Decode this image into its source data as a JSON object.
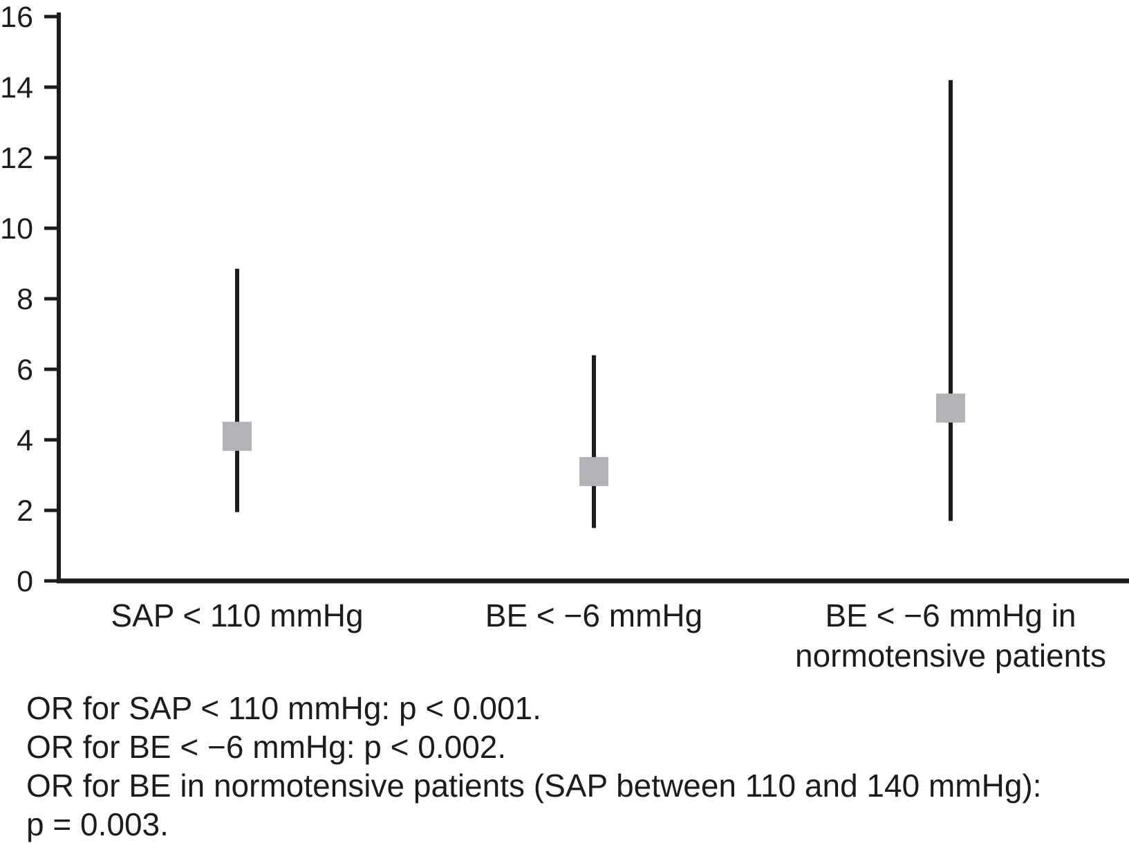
{
  "figure": {
    "background": "#ffffff",
    "ink_color": "#1c1c1c"
  },
  "chart_data": {
    "type": "scatter",
    "subtype": "odds-ratio-point-estimates-with-95ci-error-bars",
    "title": "",
    "xlabel": "",
    "ylabel": "",
    "ylim": [
      0,
      16
    ],
    "yticks": [
      0,
      2,
      4,
      6,
      8,
      10,
      12,
      14,
      16
    ],
    "grid": false,
    "legend": "none",
    "marker_shape": "square",
    "marker_color": "#b1b3b6",
    "error_bar_color": "#1c1c1c",
    "axis_color": "#1c1c1c",
    "categories": [
      "SAP < 110 mmHg",
      "BE < −6 mmHg",
      "BE < −6 mmHg in normotensive patients"
    ],
    "category_label_lines": [
      [
        "SAP < 110 mmHg"
      ],
      [
        "BE < −6 mmHg"
      ],
      [
        "BE < −6 mmHg in",
        "normotensive patients"
      ]
    ],
    "points": [
      {
        "category": "SAP < 110 mmHg",
        "or": 4.1,
        "ci_low": 1.95,
        "ci_high": 8.85
      },
      {
        "category": "BE < −6 mmHg",
        "or": 3.1,
        "ci_low": 1.5,
        "ci_high": 6.4
      },
      {
        "category": "BE < −6 mmHg in normotensive patients",
        "or": 4.9,
        "ci_low": 1.7,
        "ci_high": 14.2
      }
    ]
  },
  "footnotes": {
    "lines": [
      "OR for SAP < 110 mmHg: p < 0.001.",
      "OR for BE < −6 mmHg: p < 0.002.",
      "OR for BE in normotensive patients (SAP between 110 and 140 mmHg):",
      "p = 0.003."
    ]
  }
}
